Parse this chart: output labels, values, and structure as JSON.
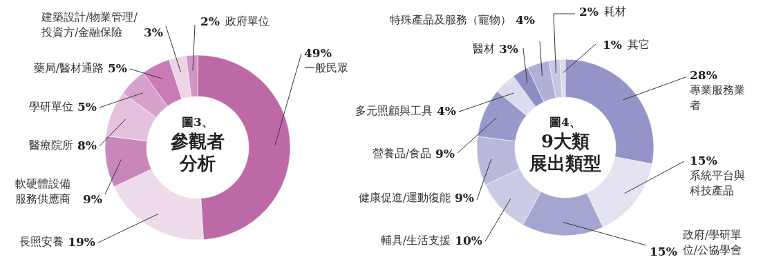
{
  "chart_data": [
    {
      "type": "donut",
      "title": "圖3、",
      "subtitle": "參觀者分析",
      "value_labels": [
        "49%",
        "19%",
        "9%",
        "8%",
        "5%",
        "5%",
        "3%",
        "2%"
      ],
      "categories": [
        "一般民眾",
        "長照安養",
        "軟硬體設備服務供應商",
        "醫療院所",
        "學研單位",
        "藥局/醫材通路",
        "建築設計/物業管理/投資方/金融保險",
        "政府單位"
      ],
      "values": [
        49,
        19,
        9,
        8,
        5,
        5,
        3,
        2
      ],
      "colors": [
        "#bd69a5",
        "#eddbea",
        "#c886b9",
        "#e4c2dd",
        "#d7a1cc",
        "#c87bb4",
        "#edd3e6",
        "#d395c3"
      ]
    },
    {
      "type": "donut",
      "title": "圖4、",
      "subtitle": "9大類展出類型",
      "value_labels": [
        "28%",
        "15%",
        "15%",
        "10%",
        "9%",
        "9%",
        "4%",
        "3%",
        "4%",
        "2%",
        "1%"
      ],
      "categories": [
        "專業服務業者",
        "系統平台與科技產品",
        "政府/學研單位/公協學會",
        "輔具/生活支援",
        "健康促進/運動復能",
        "營養品/食品",
        "多元照顧與工具",
        "醫材",
        "特殊產品及服務（寵物）",
        "耗材",
        "其它"
      ],
      "values": [
        28,
        15,
        15,
        10,
        9,
        9,
        4,
        3,
        4,
        2,
        1
      ],
      "colors": [
        "#9494c8",
        "#e3e3f1",
        "#a5a5d1",
        "#cacae4",
        "#b8b8db",
        "#9898ca",
        "#dcdcee",
        "#8e8ec4",
        "#b0b0d6",
        "#c6c6e2",
        "#dadaed"
      ]
    }
  ]
}
